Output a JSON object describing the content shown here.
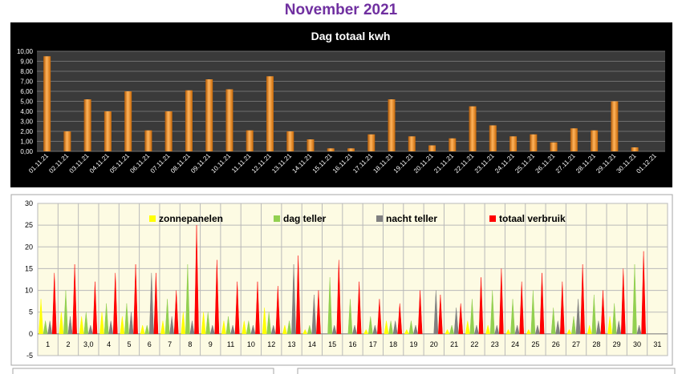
{
  "page": {
    "title": "November 2021"
  },
  "chart_data": [
    {
      "type": "bar",
      "title": "Dag totaal kwh",
      "ylim": [
        0,
        10
      ],
      "yticks": [
        "0,00",
        "1,00",
        "2,00",
        "3,00",
        "4,00",
        "5,00",
        "6,00",
        "7,00",
        "8,00",
        "9,00",
        "10,00"
      ],
      "categories": [
        "01.11.21",
        "02.11.21",
        "03.11.21",
        "04.11.21",
        "05.11.21",
        "06.11.21",
        "07.11.21",
        "08.11.21",
        "09.11.21",
        "10.11.21",
        "11.11.21",
        "12.11.21",
        "13.11.21",
        "14.11.21",
        "15.11.21",
        "16.11.21",
        "17.11.21",
        "18.11.21",
        "19.11.21",
        "20.11.21",
        "21.11.21",
        "22.11.21",
        "23.11.21",
        "24.11.21",
        "25.11.21",
        "26.11.21",
        "27.11.21",
        "28.11.21",
        "29.11.21",
        "30.11.21",
        "01.12.21"
      ],
      "values": [
        9.5,
        2.0,
        5.2,
        4.0,
        6.0,
        2.1,
        4.0,
        6.1,
        7.2,
        6.2,
        2.1,
        7.5,
        2.0,
        1.2,
        0.3,
        0.3,
        1.7,
        5.2,
        1.5,
        0.6,
        1.3,
        4.5,
        2.6,
        1.5,
        1.7,
        0.9,
        2.3,
        2.1,
        5.0,
        0.4,
        0.0
      ],
      "colors": {
        "background": "#000000",
        "plot": "#3a3a3a",
        "bar": "#f79a2e",
        "grid": "#6e6e6e",
        "text": "#ffffff"
      },
      "grid": true
    },
    {
      "type": "line",
      "ylim": [
        -5,
        30
      ],
      "yticks": [
        "-5",
        "0",
        "5",
        "10",
        "15",
        "20",
        "25",
        "30"
      ],
      "categories": [
        "1",
        "2",
        "3,0",
        "4",
        "5",
        "6",
        "7",
        "8",
        "9",
        "11",
        "10",
        "12",
        "13",
        "14",
        "15",
        "16",
        "17",
        "18",
        "19",
        "20",
        "21",
        "22",
        "23",
        "24",
        "25",
        "26",
        "27",
        "28",
        "29",
        "30",
        "31"
      ],
      "legend_position": "top",
      "series": [
        {
          "name": "zonnepanelen",
          "color": "#ffff00",
          "peaks": [
            8,
            5,
            4,
            5,
            4,
            2,
            3,
            5,
            5,
            3,
            3,
            6,
            2,
            1,
            0,
            0,
            1,
            3,
            1,
            0,
            1,
            3,
            2,
            1,
            1,
            0,
            1,
            2,
            4,
            0,
            0
          ]
        },
        {
          "name": "dag teller",
          "color": "#92d050",
          "peaks": [
            3,
            10,
            5,
            7,
            7,
            2,
            8,
            16,
            5,
            4,
            3,
            5,
            3,
            2,
            13,
            8,
            4,
            3,
            3,
            0,
            2,
            8,
            10,
            8,
            10,
            6,
            4,
            9,
            7,
            16,
            0
          ]
        },
        {
          "name": "nacht teller",
          "color": "#808080",
          "peaks": [
            3,
            4,
            2,
            3,
            5,
            14,
            4,
            3,
            2,
            2,
            2,
            2,
            16,
            9,
            2,
            2,
            2,
            3,
            2,
            10,
            6,
            2,
            2,
            2,
            2,
            3,
            8,
            3,
            3,
            2,
            0
          ]
        },
        {
          "name": "totaal verbruik",
          "color": "#ff0000",
          "peaks": [
            14,
            16,
            12,
            14,
            16,
            14,
            10,
            25,
            17,
            12,
            12,
            11,
            18,
            10,
            17,
            12,
            8,
            7,
            10,
            9,
            7,
            13,
            15,
            12,
            14,
            12,
            16,
            10,
            15,
            19,
            0
          ]
        }
      ],
      "colors": {
        "plot": "#fdfbe3",
        "grid": "#b9b9b9",
        "border": "#a6a6a6"
      },
      "grid": true
    }
  ]
}
